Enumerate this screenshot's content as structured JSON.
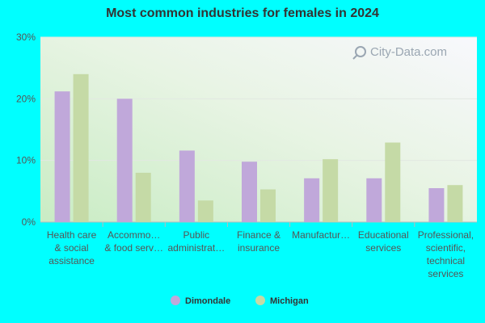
{
  "chart_data": {
    "type": "bar",
    "title": "Most common industries for females in 2024",
    "xlabel": "",
    "ylabel": "",
    "ylim": [
      0,
      30
    ],
    "yticks": [
      0,
      10,
      20,
      30
    ],
    "ytick_labels": [
      "0%",
      "10%",
      "20%",
      "30%"
    ],
    "categories": [
      [
        "Health care",
        "& social",
        "assistance"
      ],
      [
        "Accommo…",
        "& food serv…"
      ],
      [
        "Public",
        "administrat…"
      ],
      [
        "Finance &",
        "insurance"
      ],
      [
        "Manufactur…"
      ],
      [
        "Educational",
        "services"
      ],
      [
        "Professional,",
        "scientific,",
        "technical",
        "services"
      ]
    ],
    "series": [
      {
        "name": "Dimondale",
        "color": "#C0A8DA",
        "values": [
          21.2,
          20.0,
          11.6,
          9.8,
          7.1,
          7.1,
          5.5
        ]
      },
      {
        "name": "Michigan",
        "color": "#C5DAA6",
        "values": [
          24.0,
          8.0,
          3.5,
          5.3,
          10.2,
          12.9,
          6.0
        ]
      }
    ],
    "legend_position": "bottom",
    "grid": true
  },
  "watermark": {
    "text": "City-Data.com"
  },
  "colors": {
    "background": "#00FFFF",
    "grid": "#e2e8e2",
    "axis": "#bbbbbb"
  }
}
